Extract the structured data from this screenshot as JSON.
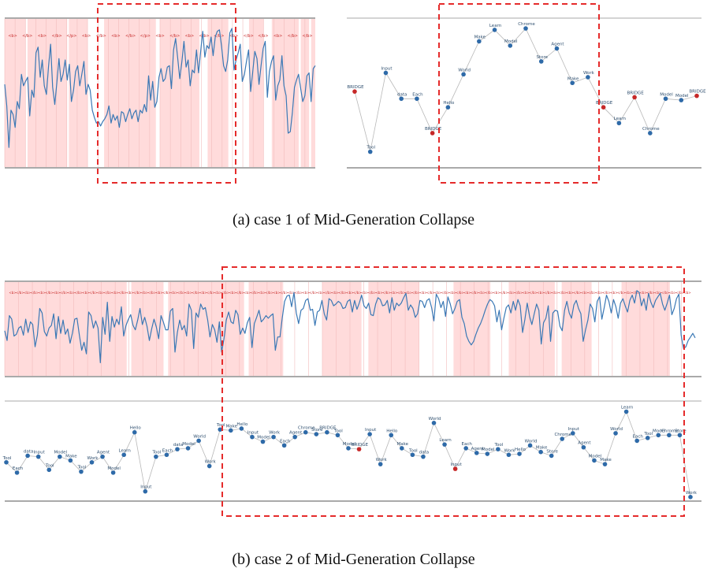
{
  "captions": {
    "a": "(a) case 1 of Mid-Generation Collapse",
    "b": "(b) case 2 of Mid-Generation Collapse"
  },
  "colors": {
    "line": "#3a78b5",
    "band": "#ffd9d9",
    "highlight": "#e52b2b",
    "axis": "#555555",
    "connector": "#b8b8b8",
    "node": "#2e6aa8",
    "node_alt": "#c62828"
  },
  "chart_data": [
    {
      "id": "a-left",
      "type": "line",
      "title": "",
      "x_range": [
        0,
        150
      ],
      "ylim": [
        0,
        1
      ],
      "series": [
        {
          "name": "signal",
          "values": [
            0.56,
            0.41,
            0.12,
            0.38,
            0.35,
            0.26,
            0.44,
            0.39,
            0.63,
            0.55,
            0.58,
            0.61,
            0.34,
            0.52,
            0.47,
            0.78,
            0.82,
            0.61,
            0.73,
            0.55,
            0.49,
            0.68,
            0.84,
            0.54,
            0.42,
            0.57,
            0.74,
            0.58,
            0.63,
            0.73,
            0.59,
            0.7,
            0.44,
            0.52,
            0.65,
            0.69,
            0.55,
            0.63,
            0.72,
            0.49,
            0.56,
            0.52,
            0.38,
            0.33,
            0.29,
            0.3,
            0.27,
            0.3,
            0.32,
            0.35,
            0.41,
            0.29,
            0.35,
            0.31,
            0.34,
            0.26,
            0.37,
            0.36,
            0.3,
            0.35,
            0.39,
            0.32,
            0.36,
            0.38,
            0.3,
            0.38,
            0.36,
            0.42,
            0.37,
            0.62,
            0.45,
            0.58,
            0.4,
            0.44,
            0.61,
            0.67,
            0.58,
            0.6,
            0.68,
            0.69,
            0.53,
            0.8,
            0.88,
            0.74,
            0.6,
            0.72,
            0.86,
            0.68,
            0.73,
            0.55,
            0.66,
            0.64,
            0.8,
            0.64,
            0.79,
            0.93,
            0.75,
            0.83,
            0.81,
            0.89,
            0.76,
            0.89,
            0.93,
            0.94,
            0.83,
            0.69,
            0.65,
            0.73,
            0.92,
            0.95,
            0.66,
            0.73,
            0.78,
            0.84,
            0.58,
            0.63,
            0.72,
            0.8,
            0.51,
            0.65,
            0.79,
            0.74,
            0.56,
            0.69,
            0.81,
            0.86,
            0.47,
            0.65,
            0.72,
            0.76,
            0.45,
            0.55,
            0.59,
            0.76,
            0.55,
            0.48,
            0.22,
            0.23,
            0.36,
            0.54,
            0.59,
            0.63,
            0.53,
            0.44,
            0.48,
            0.62,
            0.64,
            0.44,
            0.67,
            0.69
          ]
        }
      ],
      "bands": [
        [
          0,
          10
        ],
        [
          11,
          30
        ],
        [
          31,
          40
        ],
        [
          48,
          73
        ],
        [
          75,
          94
        ],
        [
          98,
          108
        ],
        [
          118,
          125
        ],
        [
          129,
          142
        ],
        [
          143,
          147
        ],
        [
          148,
          150
        ]
      ],
      "tick_labels": [
        "<b>",
        "</b>",
        "<b>",
        "</b>",
        "</p>",
        "<b>",
        "</b>",
        "<b>",
        "</b>",
        "</p>",
        "<b>",
        "</b>",
        "<b>",
        "</b>",
        "</b>",
        "<b>",
        "</b>",
        "</b>",
        "<b>",
        "</b>",
        "</b>"
      ]
    },
    {
      "id": "a-right",
      "type": "scatter",
      "title": "",
      "ylim": [
        0,
        1
      ],
      "points": [
        {
          "label": "BRIDGE",
          "y": 0.51
        },
        {
          "label": "Tool",
          "y": 0.09
        },
        {
          "label": "Input",
          "y": 0.64
        },
        {
          "label": "data",
          "y": 0.46
        },
        {
          "label": "Each",
          "y": 0.46
        },
        {
          "label": "BRIDGE",
          "y": 0.22
        },
        {
          "label": "Hello",
          "y": 0.4
        },
        {
          "label": "World",
          "y": 0.63
        },
        {
          "label": "Make",
          "y": 0.86
        },
        {
          "label": "Learn",
          "y": 0.94
        },
        {
          "label": "Model",
          "y": 0.83
        },
        {
          "label": "Chrome",
          "y": 0.95
        },
        {
          "label": "Store",
          "y": 0.72
        },
        {
          "label": "Agent",
          "y": 0.81
        },
        {
          "label": "Make",
          "y": 0.57
        },
        {
          "label": "Work",
          "y": 0.61
        },
        {
          "label": "BRIDGE",
          "y": 0.4
        },
        {
          "label": "Learn",
          "y": 0.29
        },
        {
          "label": "BRIDGE",
          "y": 0.47
        },
        {
          "label": "Chrome",
          "y": 0.22
        },
        {
          "label": "Model",
          "y": 0.46
        },
        {
          "label": "Model",
          "y": 0.45
        },
        {
          "label": "BRIDGE",
          "y": 0.48
        }
      ],
      "highlighted_indices": [
        0,
        5,
        16,
        18,
        22
      ]
    },
    {
      "id": "b-top",
      "type": "line",
      "title": "",
      "x_range": [
        0,
        300
      ],
      "ylim": [
        0,
        1
      ],
      "series": [
        {
          "name": "signal",
          "values": [
            0.48,
            0.37,
            0.65,
            0.61,
            0.42,
            0.44,
            0.51,
            0.53,
            0.43,
            0.61,
            0.46,
            0.58,
            0.55,
            0.3,
            0.43,
            0.73,
            0.68,
            0.47,
            0.42,
            0.51,
            0.54,
            0.67,
            0.39,
            0.64,
            0.45,
            0.6,
            0.44,
            0.5,
            0.34,
            0.45,
            0.61,
            0.62,
            0.43,
            0.26,
            0.35,
            0.22,
            0.69,
            0.65,
            0.51,
            0.59,
            0.51,
            0.12,
            0.63,
            0.44,
            0.8,
            0.36,
            0.64,
            0.52,
            0.61,
            0.55,
            0.75,
            0.42,
            0.54,
            0.61,
            0.66,
            0.54,
            0.49,
            0.6,
            0.73,
            0.55,
            0.63,
            0.53,
            0.37,
            0.5,
            0.61,
            0.52,
            0.39,
            0.65,
            0.58,
            0.49,
            0.49,
            0.7,
            0.73,
            0.24,
            0.46,
            0.6,
            0.49,
            0.54,
            0.42,
            0.78,
            0.71,
            0.28,
            0.68,
            0.63,
            0.78,
            0.72,
            0.74,
            0.6,
            0.41,
            0.55,
            0.49,
            0.35,
            0.58,
            0.24,
            0.39,
            0.6,
            0.69,
            0.58,
            0.56,
            0.71,
            0.66,
            0.44,
            0.51,
            0.45,
            0.57,
            0.63,
            0.29,
            0.56,
            0.63,
            0.71,
            0.58,
            0.61,
            0.65,
            0.62,
            0.65,
            0.67,
            0.26,
            0.41,
            0.41,
            0.63,
            0.81,
            0.87,
            0.88,
            0.75,
            0.91,
            0.68,
            0.56,
            0.71,
            0.73,
            0.82,
            0.84,
            0.71,
            0.72,
            0.54,
            0.69,
            0.71,
            0.82,
            0.67,
            0.6,
            0.84,
            0.82,
            0.76,
            0.78,
            0.81,
            0.79,
            0.73,
            0.74,
            0.81,
            0.83,
            0.69,
            0.82,
            0.72,
            0.79,
            0.88,
            0.76,
            0.73,
            0.79,
            0.66,
            0.65,
            0.78,
            0.85,
            0.83,
            0.76,
            0.77,
            0.82,
            0.68,
            0.85,
            0.71,
            0.79,
            0.76,
            0.79,
            0.85,
            0.9,
            0.71,
            0.77,
            0.73,
            0.63,
            0.67,
            0.82,
            0.81,
            0.74,
            0.82,
            0.84,
            0.74,
            0.59,
            0.89,
            0.84,
            0.74,
            0.81,
            0.64,
            0.86,
            0.78,
            0.67,
            0.73,
            0.81,
            0.83,
            0.63,
            0.56,
            0.42,
            0.36,
            0.32,
            0.36,
            0.44,
            0.51,
            0.56,
            0.63,
            0.71,
            0.78,
            0.83,
            0.81,
            0.76,
            0.58,
            0.71,
            0.49,
            0.62,
            0.74,
            0.77,
            0.68,
            0.81,
            0.71,
            0.83,
            0.76,
            0.46,
            0.61,
            0.79,
            0.64,
            0.55,
            0.67,
            0.78,
            0.71,
            0.33,
            0.57,
            0.62,
            0.76,
            0.36,
            0.68,
            0.71,
            0.7,
            0.53,
            0.48,
            0.71,
            0.81,
            0.68,
            0.62,
            0.77,
            0.82,
            0.73,
            0.67,
            0.36,
            0.49,
            0.6,
            0.78,
            0.73,
            0.58,
            0.81,
            0.86,
            0.61,
            0.74,
            0.88,
            0.81,
            0.68,
            0.83,
            0.75,
            0.62,
            0.79,
            0.84,
            0.76,
            0.69,
            0.82,
            0.88,
            0.79,
            0.93,
            0.91,
            0.76,
            0.84,
            0.71,
            0.9,
            0.8,
            0.74,
            0.82,
            0.86,
            0.9,
            0.78,
            0.71,
            0.79,
            0.88,
            0.66,
            0.73,
            0.84,
            0.89,
            0.43,
            0.28,
            0.3,
            0.37,
            0.41,
            0.45,
            0.4
          ]
        }
      ],
      "bands": [
        [
          0,
          53
        ],
        [
          55,
          69
        ],
        [
          71,
          104
        ],
        [
          106,
          121
        ],
        [
          138,
          155
        ],
        [
          158,
          180
        ],
        [
          195,
          211
        ],
        [
          219,
          239
        ],
        [
          242,
          255
        ],
        [
          268,
          289
        ]
      ],
      "tick_labels": [
        "<b>",
        "</b>",
        "<b>",
        "</b>",
        "<b>",
        "</b>",
        "<b>",
        "</b>",
        "<b>",
        "</b>",
        "<b>",
        "</b>",
        "<b>",
        "</b>",
        "<b>",
        "</b>",
        "<b>",
        "</b>",
        "<b>",
        "</b>",
        "<b>",
        "</b>",
        "<b>",
        "</b>",
        "<b>",
        "</b>",
        "<b>",
        "</b>",
        "<b>",
        "</b>",
        "<b>",
        "</b>",
        "<b>",
        "</b>",
        "<b>",
        "</b>",
        "<b>",
        "</b>",
        "<b>",
        "</b>",
        "<b>",
        "</b>",
        "<b>",
        "</b>",
        "<b>",
        "</b>",
        "<b>",
        "</b>",
        "<b>",
        "</b>",
        "<b>",
        "</b>",
        "<b>",
        "</b>",
        "<b>",
        "</b>",
        "<b>",
        "</b>",
        "<b>",
        "</b>",
        "<b>",
        "</b>",
        "<b>",
        "</b>",
        "<b>",
        "</b>",
        "<b>",
        "</b>",
        "<b>",
        "</b>",
        "<b>",
        "</b>",
        "<b>",
        "</b>",
        "<b>",
        "</b>",
        "<b>",
        "</b>",
        "<b>",
        "</b>",
        "<b>",
        "</b>",
        "<b>",
        "</b>",
        "<b>",
        "</b>",
        "<b>",
        "</b>",
        "<b>",
        "</b>",
        "<b>",
        "</b>",
        "<b>"
      ]
    },
    {
      "id": "b-bottom",
      "type": "scatter",
      "title": "",
      "ylim": [
        0,
        1
      ],
      "points": [
        {
          "label": "Tool",
          "y": 0.38
        },
        {
          "label": "Each",
          "y": 0.27
        },
        {
          "label": "data",
          "y": 0.45
        },
        {
          "label": "Input",
          "y": 0.44
        },
        {
          "label": "Tool",
          "y": 0.3
        },
        {
          "label": "Model",
          "y": 0.44
        },
        {
          "label": "Make",
          "y": 0.4
        },
        {
          "label": "Tool",
          "y": 0.28
        },
        {
          "label": "Work",
          "y": 0.38
        },
        {
          "label": "Agent",
          "y": 0.44
        },
        {
          "label": "Model",
          "y": 0.27
        },
        {
          "label": "Learn",
          "y": 0.46
        },
        {
          "label": "Hello",
          "y": 0.7
        },
        {
          "label": "Input",
          "y": 0.07
        },
        {
          "label": "Tool",
          "y": 0.44
        },
        {
          "label": "Each",
          "y": 0.46
        },
        {
          "label": "data",
          "y": 0.52
        },
        {
          "label": "Model",
          "y": 0.53
        },
        {
          "label": "World",
          "y": 0.61
        },
        {
          "label": "Work",
          "y": 0.34
        },
        {
          "label": "Tool",
          "y": 0.73
        },
        {
          "label": "Make",
          "y": 0.72
        },
        {
          "label": "Hello",
          "y": 0.74
        },
        {
          "label": "Input",
          "y": 0.65
        },
        {
          "label": "Model",
          "y": 0.6
        },
        {
          "label": "Work",
          "y": 0.65
        },
        {
          "label": "Each",
          "y": 0.56
        },
        {
          "label": "Agent",
          "y": 0.65
        },
        {
          "label": "Chrome",
          "y": 0.7
        },
        {
          "label": "Store",
          "y": 0.68
        },
        {
          "label": "BRIDGE",
          "y": 0.7
        },
        {
          "label": "Tool",
          "y": 0.67
        },
        {
          "label": "Model",
          "y": 0.53
        },
        {
          "label": "BRIDGE",
          "y": 0.52
        },
        {
          "label": "Input",
          "y": 0.68
        },
        {
          "label": "Work",
          "y": 0.36
        },
        {
          "label": "Hello",
          "y": 0.67
        },
        {
          "label": "Make",
          "y": 0.53
        },
        {
          "label": "Tool",
          "y": 0.46
        },
        {
          "label": "data",
          "y": 0.44
        },
        {
          "label": "World",
          "y": 0.8
        },
        {
          "label": "Learn",
          "y": 0.57
        },
        {
          "label": "Input",
          "y": 0.31
        },
        {
          "label": "Each",
          "y": 0.53
        },
        {
          "label": "Agent",
          "y": 0.48
        },
        {
          "label": "Model",
          "y": 0.47
        },
        {
          "label": "Tool",
          "y": 0.52
        },
        {
          "label": "Work",
          "y": 0.46
        },
        {
          "label": "Hello",
          "y": 0.47
        },
        {
          "label": "World",
          "y": 0.56
        },
        {
          "label": "Make",
          "y": 0.49
        },
        {
          "label": "Store",
          "y": 0.45
        },
        {
          "label": "Chrome",
          "y": 0.63
        },
        {
          "label": "Input",
          "y": 0.69
        },
        {
          "label": "Agent",
          "y": 0.54
        },
        {
          "label": "Model",
          "y": 0.4
        },
        {
          "label": "Make",
          "y": 0.36
        },
        {
          "label": "World",
          "y": 0.69
        },
        {
          "label": "Learn",
          "y": 0.92
        },
        {
          "label": "Each",
          "y": 0.61
        },
        {
          "label": "Tool",
          "y": 0.64
        },
        {
          "label": "Model",
          "y": 0.67
        },
        {
          "label": "Chrome",
          "y": 0.67
        },
        {
          "label": "Store",
          "y": 0.67
        },
        {
          "label": "Work",
          "y": 0.01
        }
      ],
      "highlighted_indices": [
        33,
        42
      ]
    }
  ]
}
